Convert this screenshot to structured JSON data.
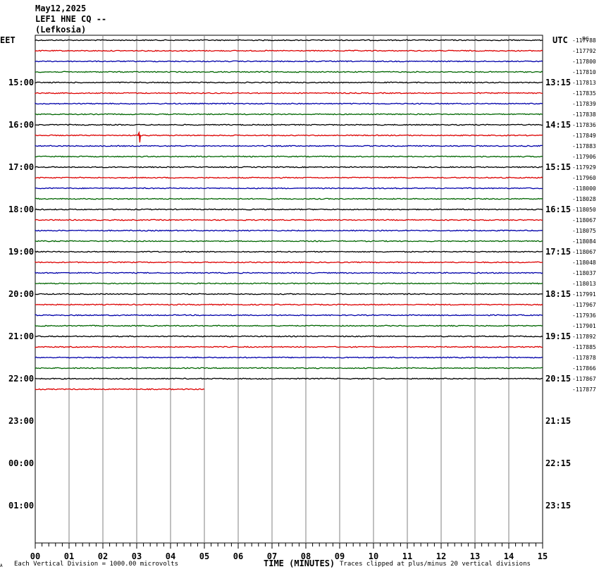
{
  "header": {
    "date": "May12,2025",
    "station": "LEF1 HNE CQ --",
    "location": "(Lefkosia)"
  },
  "left_tz": "EET",
  "right_tz": "UTC",
  "corner_label": "PC",
  "footer": {
    "scale_note": "Each Vertical Division = 1000.00 microvolts",
    "xlabel": "TIME (MINUTES)",
    "clip_note": "Traces clipped at plus/minus 20 vertical divisions",
    "corner_mark": "A"
  },
  "colors": {
    "trace_cycle": [
      "#000000",
      "#dd0000",
      "#0000aa",
      "#006600"
    ],
    "grid": "#808080"
  },
  "chart_data": {
    "type": "line",
    "title": "LEF1 HNE CQ --",
    "xlabel": "TIME (MINUTES)",
    "xlim": [
      0,
      15
    ],
    "x_ticks": [
      "00",
      "01",
      "02",
      "03",
      "04",
      "05",
      "06",
      "07",
      "08",
      "09",
      "10",
      "11",
      "12",
      "13",
      "14",
      "15"
    ],
    "rows_per_hour": 4,
    "left_hour_labels": [
      "15:00",
      "16:00",
      "17:00",
      "18:00",
      "19:00",
      "20:00",
      "21:00",
      "22:00",
      "23:00",
      "00:00",
      "01:00"
    ],
    "right_hour_labels": [
      "13:15",
      "14:15",
      "15:15",
      "16:15",
      "17:15",
      "18:15",
      "19:15",
      "20:15",
      "21:15",
      "22:15",
      "23:15"
    ],
    "trace_offsets": [
      -117788,
      -117792,
      -117800,
      -117810,
      -117813,
      -117835,
      -117839,
      -117838,
      -117836,
      -117849,
      -117883,
      -117906,
      -117929,
      -117960,
      -118000,
      -118028,
      -118050,
      -118067,
      -118075,
      -118084,
      -118067,
      -118048,
      -118037,
      -118013,
      -117991,
      -117967,
      -117936,
      -117901,
      -117892,
      -117885,
      -117878,
      -117866,
      -117867,
      -117877
    ],
    "trace_end_minutes": [
      15,
      15,
      15,
      15,
      15,
      15,
      15,
      15,
      15,
      15,
      15,
      15,
      15,
      15,
      15,
      15,
      15,
      15,
      15,
      15,
      15,
      15,
      15,
      15,
      15,
      15,
      15,
      15,
      15,
      15,
      15,
      15,
      15,
      5
    ]
  }
}
